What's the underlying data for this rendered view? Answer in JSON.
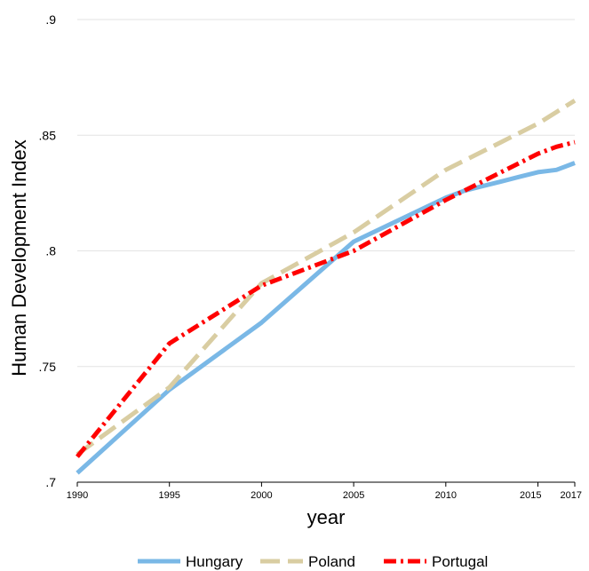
{
  "chart_data": {
    "type": "line",
    "title": "",
    "xlabel": "year",
    "ylabel": "Human Development Index",
    "xlim": [
      1990,
      2017
    ],
    "ylim": [
      0.7,
      0.9
    ],
    "xticks": [
      1990,
      1995,
      2000,
      2005,
      2010,
      2015,
      2017
    ],
    "xtick_labels": [
      "1990",
      "1995",
      "2000",
      "2005",
      "2010",
      "2015",
      "2017"
    ],
    "yticks": [
      0.7,
      0.75,
      0.8,
      0.85,
      0.9
    ],
    "ytick_labels": [
      ".7",
      ".75",
      ".8",
      ".85",
      ".9"
    ],
    "grid": true,
    "legend_position": "bottom",
    "x": [
      1990,
      1995,
      2000,
      2005,
      2010,
      2011,
      2012,
      2013,
      2014,
      2015,
      2016,
      2017
    ],
    "series": [
      {
        "name": "Hungary",
        "color": "#7ab8e6",
        "dash": "solid",
        "values": [
          0.704,
          0.74,
          0.769,
          0.804,
          0.823,
          0.826,
          0.828,
          0.83,
          0.832,
          0.834,
          0.835,
          0.838
        ]
      },
      {
        "name": "Poland",
        "color": "#d9cda2",
        "dash": "dash",
        "values": [
          0.712,
          0.741,
          0.786,
          0.808,
          0.835,
          0.839,
          0.843,
          0.847,
          0.851,
          0.855,
          0.86,
          0.865
        ]
      },
      {
        "name": "Portugal",
        "color": "#ff0000",
        "dash": "dashdot",
        "values": [
          0.711,
          0.76,
          0.785,
          0.8,
          0.822,
          0.826,
          0.83,
          0.834,
          0.838,
          0.842,
          0.845,
          0.847
        ]
      }
    ]
  }
}
